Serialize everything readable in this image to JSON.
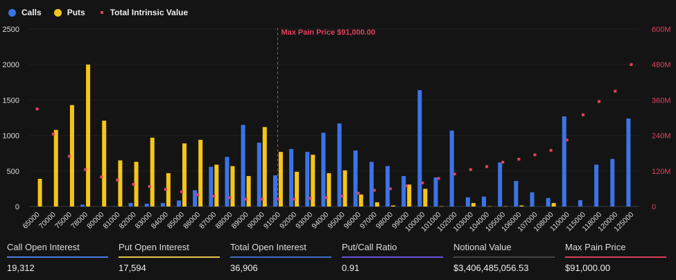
{
  "legend": {
    "calls": "Calls",
    "puts": "Puts",
    "intrinsic": "Total Intrinsic Value"
  },
  "colors": {
    "calls": "#3b74e8",
    "puts": "#f5c518",
    "intrinsic": "#e0405e",
    "background": "#141414"
  },
  "chart_data": {
    "type": "bar",
    "categories": [
      "65000",
      "70000",
      "75000",
      "78000",
      "80000",
      "81000",
      "82000",
      "83000",
      "84000",
      "85000",
      "86000",
      "87000",
      "88000",
      "89000",
      "90000",
      "91000",
      "92000",
      "93000",
      "94000",
      "95000",
      "96000",
      "97000",
      "98000",
      "99000",
      "100000",
      "101000",
      "102000",
      "103000",
      "104000",
      "105000",
      "106000",
      "107000",
      "108000",
      "110000",
      "115000",
      "118000",
      "120000",
      "125000"
    ],
    "series": [
      {
        "name": "Calls",
        "axis": "left",
        "values": [
          0,
          0,
          0,
          25,
          0,
          5,
          50,
          40,
          50,
          85,
          230,
          560,
          700,
          1150,
          900,
          440,
          810,
          770,
          1040,
          1170,
          790,
          630,
          570,
          430,
          1640,
          410,
          1070,
          130,
          140,
          620,
          360,
          200,
          120,
          1270,
          90,
          590,
          670,
          1240
        ]
      },
      {
        "name": "Puts",
        "axis": "left",
        "values": [
          390,
          1080,
          1430,
          2000,
          1210,
          650,
          630,
          970,
          470,
          890,
          940,
          590,
          570,
          430,
          1120,
          770,
          490,
          730,
          470,
          510,
          170,
          60,
          15,
          310,
          250,
          5,
          0,
          50,
          5,
          5,
          15,
          0,
          50,
          0,
          0,
          0,
          0,
          0
        ]
      },
      {
        "name": "Total Intrinsic Value",
        "axis": "right",
        "type": "scatter",
        "unit": "M",
        "values": [
          330,
          245,
          170,
          125,
          100,
          90,
          75,
          68,
          58,
          50,
          40,
          35,
          30,
          25,
          25,
          25,
          25,
          28,
          30,
          35,
          45,
          55,
          60,
          70,
          80,
          95,
          110,
          125,
          135,
          150,
          160,
          175,
          190,
          225,
          310,
          355,
          390,
          480
        ]
      }
    ],
    "y_left": {
      "ylim": [
        0,
        2500
      ],
      "ticks": [
        "0",
        "500",
        "1000",
        "1500",
        "2000",
        "2500"
      ]
    },
    "y_right": {
      "ylim": [
        0,
        600
      ],
      "ticks": [
        "0",
        "120M",
        "240M",
        "360M",
        "480M",
        "600M"
      ]
    },
    "annotation": {
      "label": "Max Pain Price $91,000.00",
      "category": "91000"
    },
    "grid": true,
    "legend_position": "top-left"
  },
  "stats": [
    {
      "label": "Call Open Interest",
      "value": "19,312",
      "color": "#4a7ee0"
    },
    {
      "label": "Put Open Interest",
      "value": "17,594",
      "color": "#e8c548"
    },
    {
      "label": "Total Open Interest",
      "value": "36,906",
      "color": "#3f6fc8"
    },
    {
      "label": "Put/Call Ratio",
      "value": "0.91",
      "color": "#6a4fd8"
    },
    {
      "label": "Notional Value",
      "value": "$3,406,485,056.53",
      "color": "#444444"
    },
    {
      "label": "Max Pain Price",
      "value": "$91,000.00",
      "color": "#d8405a"
    }
  ]
}
